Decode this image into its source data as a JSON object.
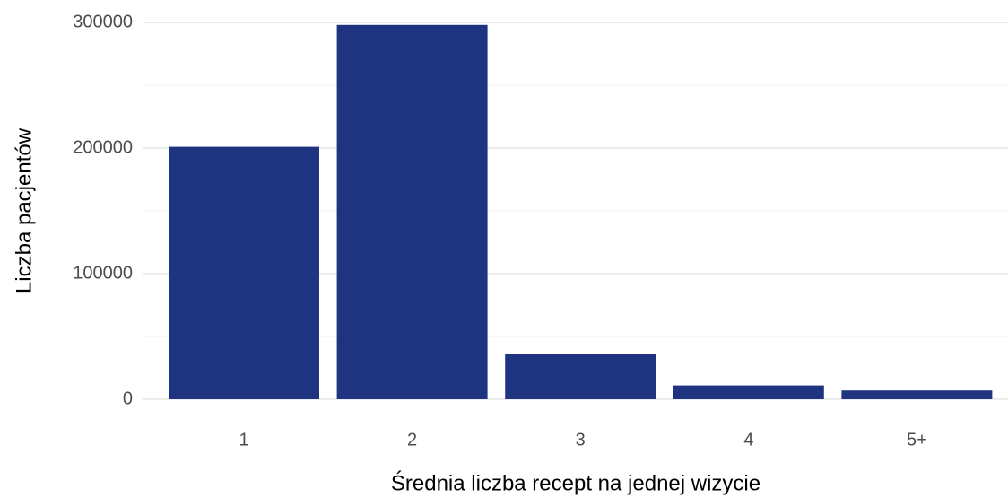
{
  "chart_data": {
    "type": "bar",
    "x_label": "Średnia liczba recept na jednej wizycie",
    "y_label": "Liczba pacjentów",
    "categories": [
      "1",
      "2",
      "3",
      "4",
      "5+"
    ],
    "values": [
      201000,
      298000,
      36000,
      11000,
      7000
    ],
    "color": "#1f3480",
    "ylim": [
      0,
      310000
    ],
    "yticks": [
      0,
      100000,
      200000,
      300000
    ],
    "minor_yticks": [
      50000,
      150000,
      250000
    ],
    "grid": true
  }
}
